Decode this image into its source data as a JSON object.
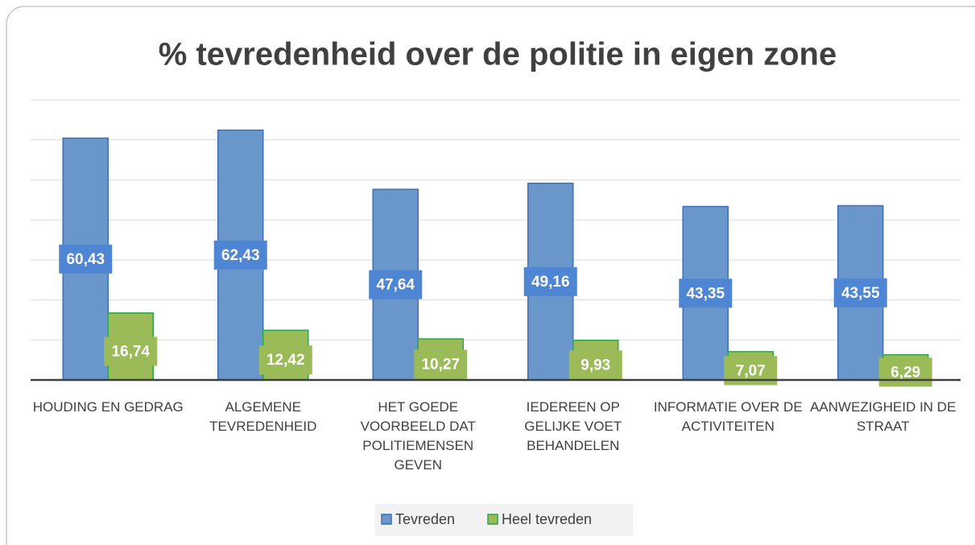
{
  "chart_data": {
    "type": "bar",
    "title": "% tevredenheid over de politie in eigen zone",
    "categories": [
      "Houding en gedrag",
      "Algemene tevredenheid",
      "Het goede voorbeeld dat politiemensen geven",
      "Iedereen op gelijke voet behandelen",
      "Informatie over de activiteiten",
      "Aanwezigheid in de straat"
    ],
    "series": [
      {
        "name": "Tevreden",
        "color": "#6a97cb",
        "values": [
          60.43,
          62.43,
          47.64,
          49.16,
          43.35,
          43.55
        ],
        "value_labels": [
          "60,43",
          "62,43",
          "47,64",
          "49,16",
          "43,35",
          "43,55"
        ]
      },
      {
        "name": "Heel tevreden",
        "color": "#9bbb59",
        "values": [
          16.74,
          12.42,
          10.27,
          9.93,
          7.07,
          6.29
        ],
        "value_labels": [
          "16,74",
          "12,42",
          "10,27",
          "9,93",
          "7,07",
          "6,29"
        ]
      }
    ],
    "ylim": [
      0,
      70
    ],
    "yticks": [
      0,
      10,
      20,
      30,
      40,
      50,
      60,
      70
    ],
    "grid": true,
    "legend": "bottom"
  }
}
